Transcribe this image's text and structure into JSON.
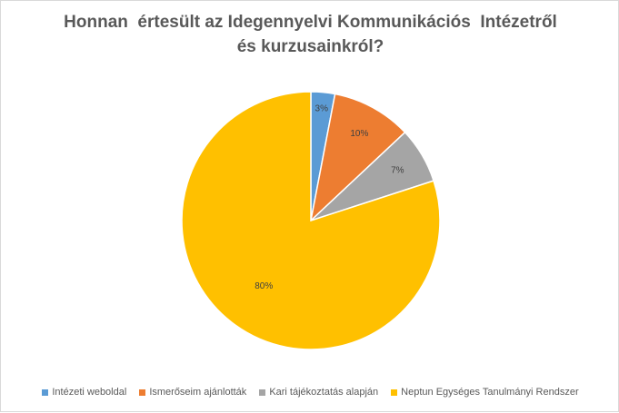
{
  "chart_data": {
    "type": "pie",
    "title_lines": [
      "Honnan  értesült az Idegennyelvi Kommunikációs  Intézetről",
      "és kurzusainkról?"
    ],
    "categories": [
      "Intézeti weboldal",
      "Ismerőseim ajánlották",
      "Kari tájékoztatás alapján",
      "Neptun Egységes Tanulmányi Rendszer"
    ],
    "values": [
      3,
      10,
      7,
      80
    ],
    "data_labels": [
      "3%",
      "10%",
      "7%",
      "80%"
    ],
    "colors": [
      "#5b9bd5",
      "#ed7d31",
      "#a5a5a5",
      "#ffc000"
    ],
    "legend_position": "bottom"
  }
}
